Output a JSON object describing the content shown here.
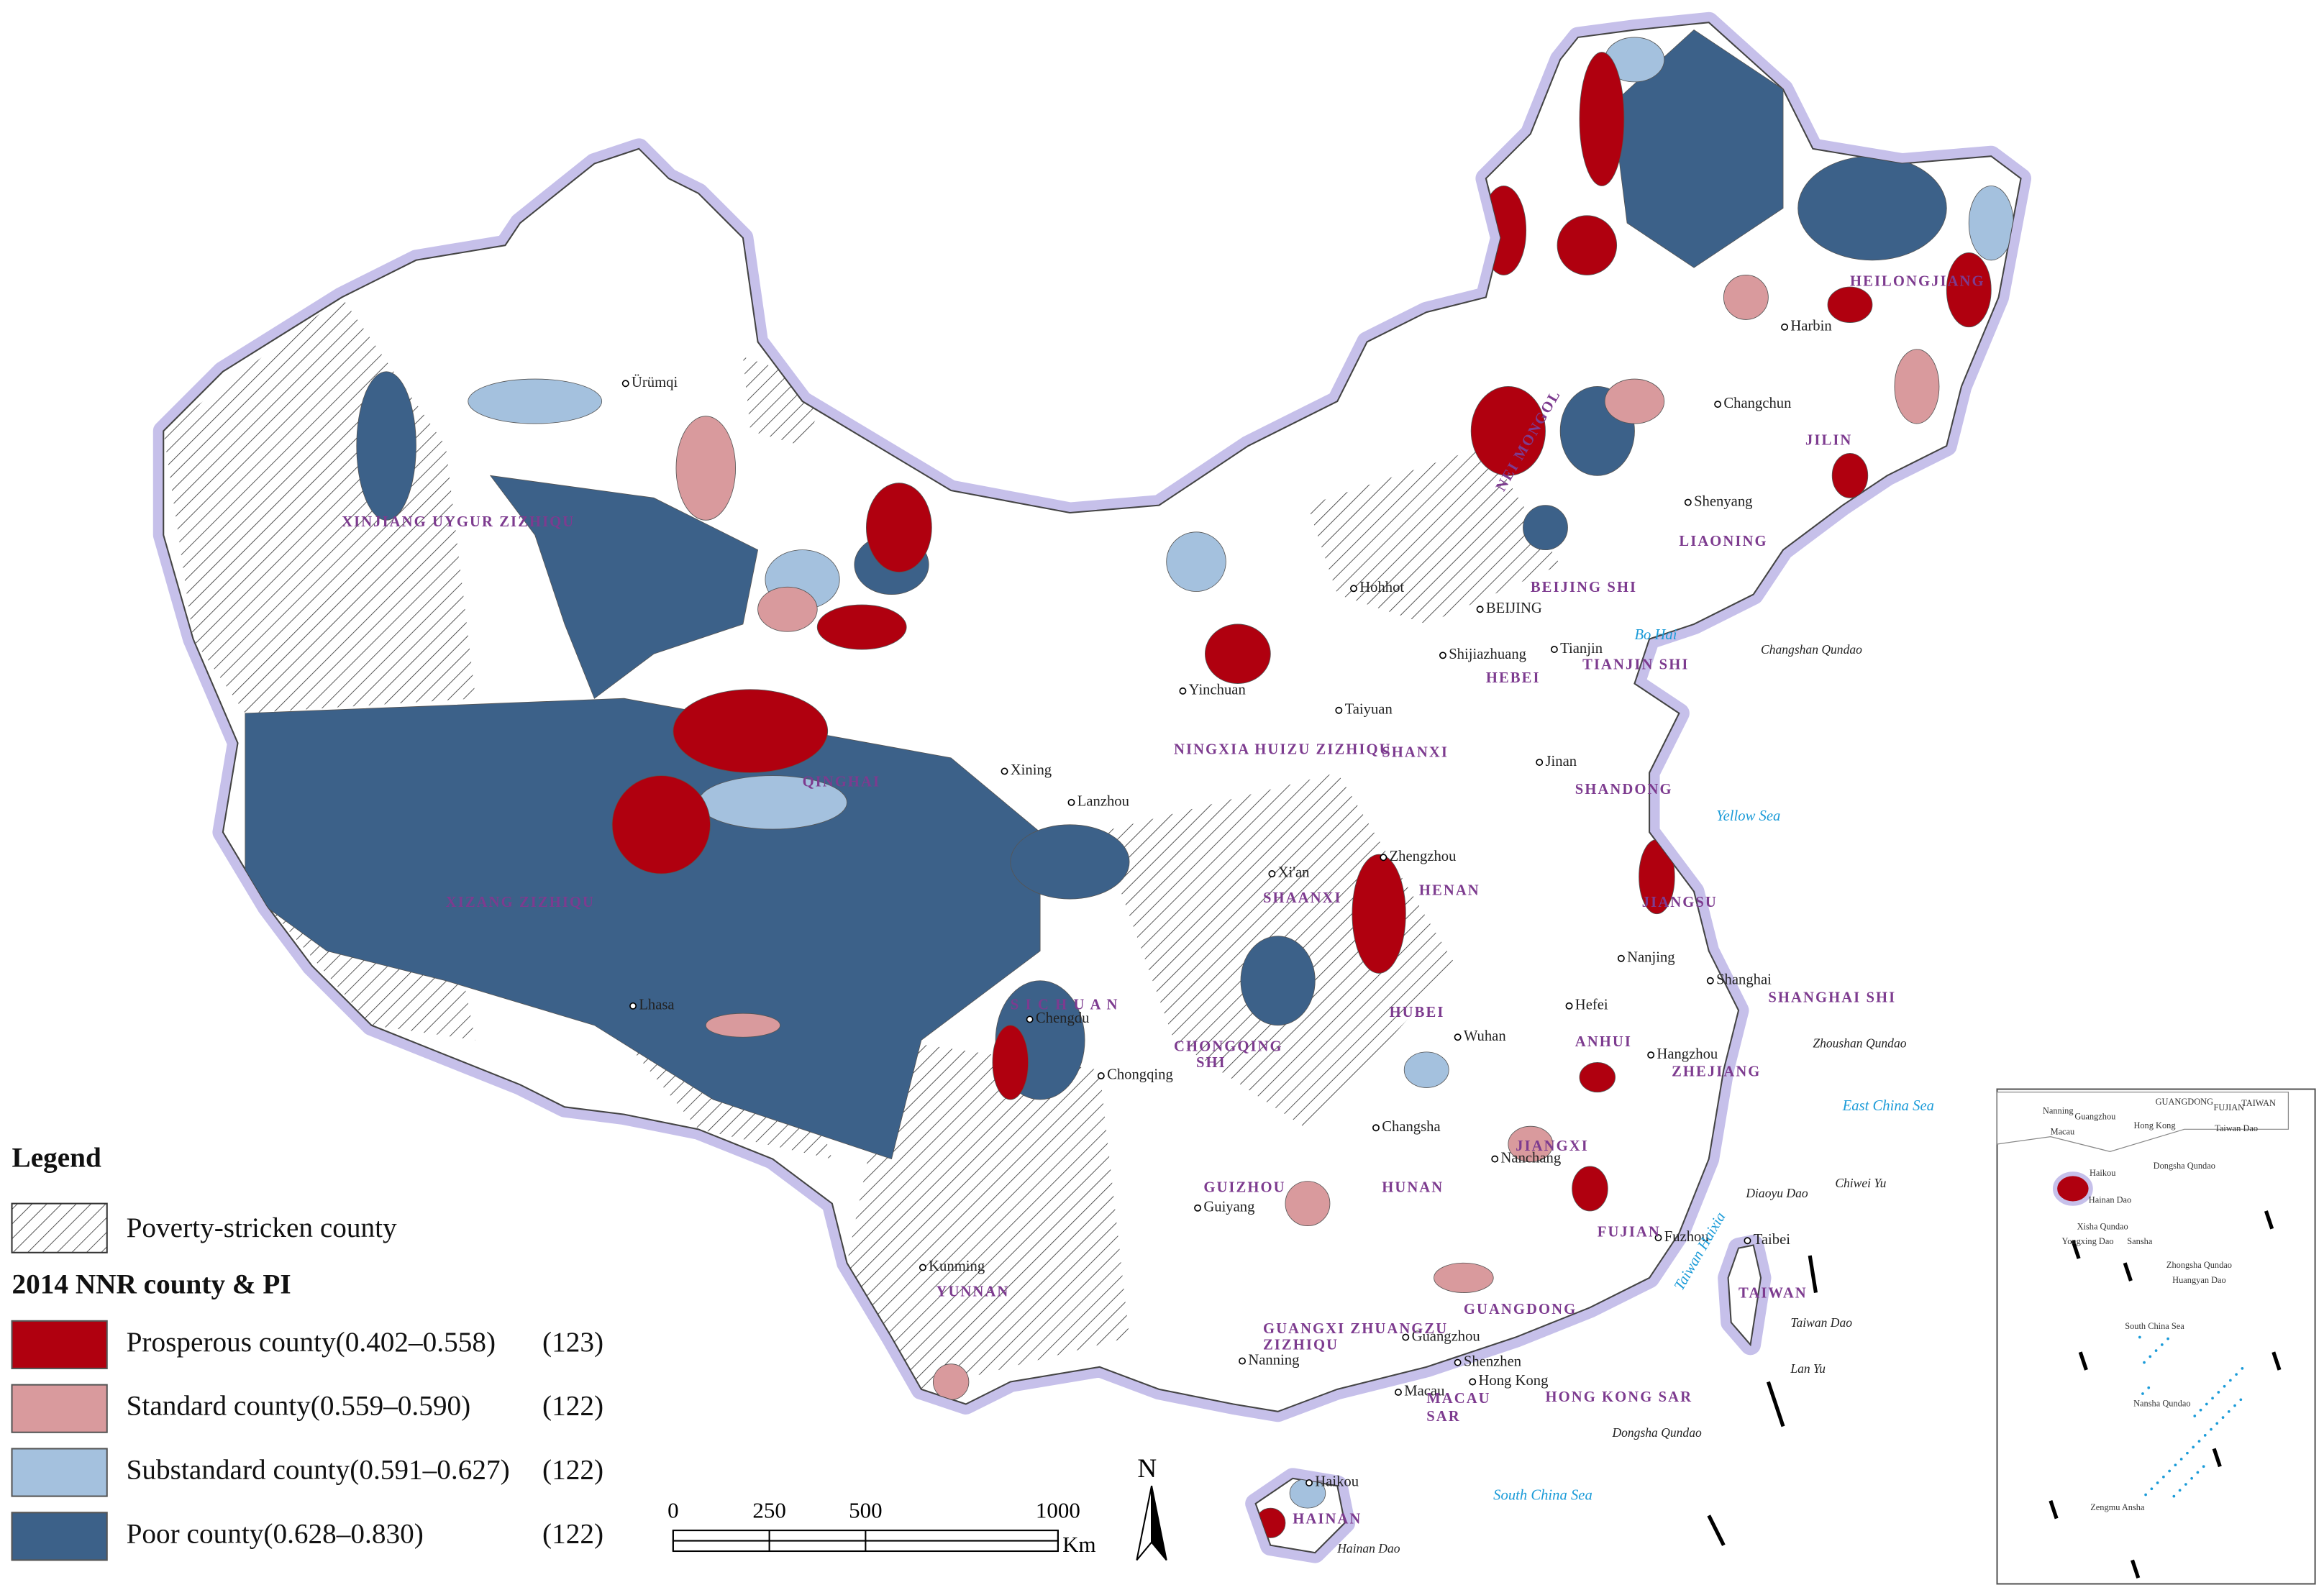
{
  "legend": {
    "title": "Legend",
    "poverty": "Poverty-stricken county",
    "subtitle": "2014 NNR county & PI",
    "items": [
      {
        "label": "Prosperous county(0.402–0.558)",
        "count": "(123)",
        "color": "#b0000f"
      },
      {
        "label": "Standard county(0.559–0.590)",
        "count": "(122)",
        "color": "#d99a9d"
      },
      {
        "label": "Substandard county(0.591–0.627)",
        "count": "(122)",
        "color": "#a4c1de"
      },
      {
        "label": "Poor county(0.628–0.830)",
        "count": "(122)",
        "color": "#3c6189"
      }
    ]
  },
  "scale_bar": {
    "ticks": [
      0,
      250,
      500,
      1000
    ],
    "unit": "Km"
  },
  "north": "N",
  "map": {
    "cities": [
      "Ürümqi",
      "Hohhot",
      "BEIJING",
      "Tianjin",
      "Shijiazhuang",
      "Taiyuan",
      "Jinan",
      "Yinchuan",
      "Xining",
      "Lanzhou",
      "Xi'an",
      "Zhengzhou",
      "Nanjing",
      "Shanghai",
      "Hefei",
      "Hangzhou",
      "Wuhan",
      "Chengdu",
      "Chongqing",
      "Lhasa",
      "Changsha",
      "Nanchang",
      "Fuzhou",
      "Guiyang",
      "Kunming",
      "Nanning",
      "Guangzhou",
      "Shenzhen",
      "Hong Kong",
      "Macau",
      "Haikou",
      "Taibei",
      "Harbin",
      "Changchun",
      "Shenyang"
    ],
    "provinces": [
      "XINJIANG    UYGUR    ZIZHIQU",
      "QINGHAI",
      "XIZANG ZIZHIQU",
      "S I C H U A N",
      "CHONGQING",
      "SHI",
      "GUIZHOU",
      "YUNNAN",
      "GUANGXI ZHUANGZU",
      "ZIZHIQU",
      "GUANGDONG",
      "HAINAN",
      "HUNAN",
      "HUBEI",
      "JIANGXI",
      "FUJIAN",
      "ZHEJIANG",
      "ANHUI",
      "JIANGSU",
      "SHANGHAI SHI",
      "HENAN",
      "SHAANXI",
      "SHANXI",
      "SHANDONG",
      "HEBEI",
      "BEIJING SHI",
      "TIANJIN SHI",
      "NEI MONGOL",
      "LIAONING",
      "JILIN",
      "HEILONGJIANG",
      "NINGXIA HUIZU ZIZHIQU",
      "HONG KONG SAR",
      "MACAU",
      "SAR",
      "TAIWAN"
    ],
    "seas": [
      "Bo Hai",
      "Yellow Sea",
      "East China Sea",
      "South China Sea",
      "Taiwan Haixia"
    ],
    "islands": [
      "Changshan Qundao",
      "Zhoushan Qundao",
      "Diaoyu Dao",
      "Chiwei Yu",
      "Taiwan Dao",
      "Lan Yu",
      "Dongsha Qundao",
      "Hainan Dao"
    ]
  },
  "inset": {
    "labels": [
      "Nanning",
      "Guangzhou",
      "Hong Kong",
      "Macau",
      "GUANGDONG",
      "FUJIAN",
      "TAIWAN",
      "Taiwan Dao",
      "Haikou",
      "Hainan Dao",
      "Dongsha Qundao",
      "Xisha Qundao",
      "Yongxing Dao",
      "Sansha",
      "Zhongsha Qundao",
      "Huangyan Dao",
      "South China Sea",
      "Nansha Qundao",
      "Zengmu Ansha"
    ]
  }
}
